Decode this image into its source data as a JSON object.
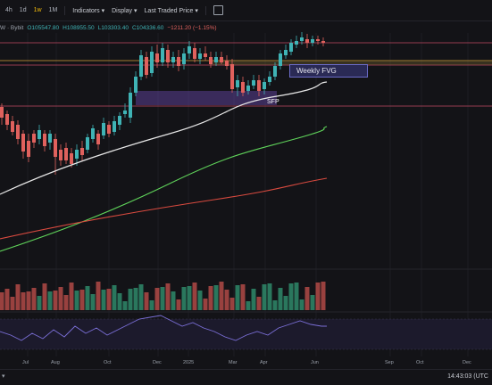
{
  "toolbar": {
    "timeframes": [
      "4h",
      "1d",
      "1w",
      "1M"
    ],
    "active_timeframe": "1w",
    "indicators_label": "Indicators",
    "display_label": "Display",
    "price_type_label": "Last Traded Price"
  },
  "ohlc": {
    "symbol_fragment": "W · Bybit",
    "open": "O105547.80",
    "high": "H108955.50",
    "low": "L103303.40",
    "close": "C104336.60",
    "change": "−1211.20 (−1.15%)"
  },
  "annotations": {
    "fvg_label": "Weekly FVG",
    "sfp_label": "SFP"
  },
  "time_axis": [
    "Jul",
    "Aug",
    "Oct",
    "Dec",
    "2025",
    "Mar",
    "Apr",
    "Jun",
    "Sep",
    "Oct",
    "Dec"
  ],
  "clock": "14:43:03 (UTC",
  "colors": {
    "up": "#3fb3b5",
    "down": "#e0615d",
    "ma_white": "#e8e8e8",
    "ma_green": "#5fd35a",
    "ma_red": "#d84a3f",
    "zone": "#6b4ab0",
    "rsi_line": "#7b6fd8"
  }
}
